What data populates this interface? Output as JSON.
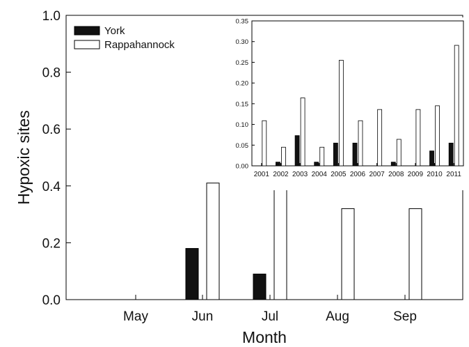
{
  "chart_data": [
    {
      "type": "bar",
      "title": "",
      "xlabel": "Month",
      "ylabel": "Hypoxic sites",
      "ylim": [
        0,
        1.0
      ],
      "yticks": [
        "0.0",
        "0.2",
        "0.4",
        "0.6",
        "0.8",
        "1.0"
      ],
      "categories": [
        "May",
        "Jun",
        "Jul",
        "Aug",
        "Sep"
      ],
      "series": [
        {
          "name": "York",
          "color": "#111111",
          "values": [
            0,
            0.18,
            0.09,
            0,
            0
          ]
        },
        {
          "name": "Rappahannock",
          "color": "#ffffff",
          "values": [
            0,
            0.41,
            0.41,
            0.32,
            0.32
          ]
        }
      ],
      "legend": "top-left",
      "grid": false
    },
    {
      "type": "bar",
      "title": "",
      "xlabel": "",
      "ylabel": "",
      "ylim": [
        0,
        0.35
      ],
      "yticks": [
        "0.00",
        "0.05",
        "0.10",
        "0.15",
        "0.20",
        "0.25",
        "0.30",
        "0.35"
      ],
      "categories": [
        "2001",
        "2002",
        "2003",
        "2004",
        "2005",
        "2006",
        "2007",
        "2008",
        "2009",
        "2010",
        "2011"
      ],
      "series": [
        {
          "name": "York",
          "color": "#111111",
          "values": [
            0,
            0.009,
            0.073,
            0.009,
            0.055,
            0.055,
            0,
            0.009,
            0,
            0.036,
            0.055
          ]
        },
        {
          "name": "Rappahannock",
          "color": "#ffffff",
          "values": [
            0.109,
            0.045,
            0.164,
            0.045,
            0.255,
            0.109,
            0.136,
            0.064,
            0.136,
            0.145,
            0.291
          ]
        }
      ],
      "grid": false
    }
  ]
}
